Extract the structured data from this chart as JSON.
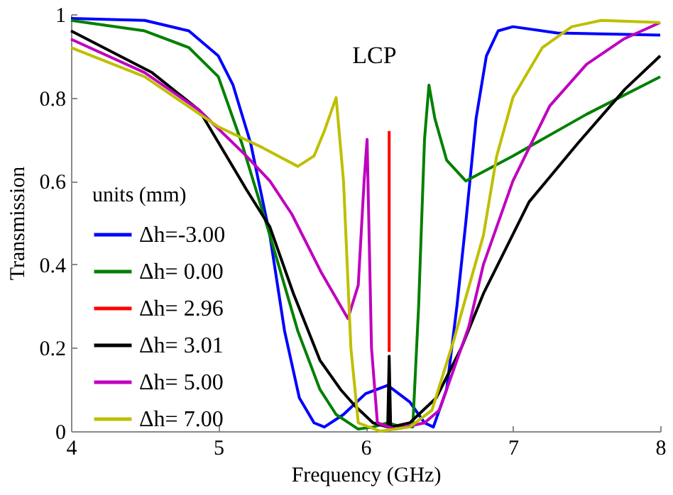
{
  "chart_data": {
    "type": "line",
    "xlabel": "Frequency (GHz)",
    "ylabel": "Transmission",
    "legend_title": "units (mm)",
    "annotations": [
      "LCP"
    ],
    "xlim": [
      4,
      8
    ],
    "xticks": [
      4,
      5,
      6,
      7,
      8
    ],
    "ylim": [
      0,
      1
    ],
    "yticks": [
      0,
      0.2,
      0.4,
      0.6,
      0.8,
      1
    ],
    "grid": false,
    "legend": "bottom left",
    "series": [
      {
        "name": "Δh=-3.00",
        "color": "#0000ff",
        "x": [
          4,
          4.5,
          4.8,
          5.0,
          5.1,
          5.22,
          5.35,
          5.45,
          5.55,
          5.65,
          5.72,
          5.85,
          6.0,
          6.15,
          6.3,
          6.4,
          6.46,
          6.55,
          6.62,
          6.68,
          6.75,
          6.82,
          6.9,
          7.0,
          7.3,
          8
        ],
        "values": [
          0.99,
          0.985,
          0.96,
          0.9,
          0.83,
          0.69,
          0.47,
          0.24,
          0.08,
          0.02,
          0.01,
          0.04,
          0.09,
          0.11,
          0.07,
          0.02,
          0.01,
          0.1,
          0.3,
          0.5,
          0.75,
          0.9,
          0.96,
          0.97,
          0.955,
          0.95
        ]
      },
      {
        "name": "Δh= 0.00",
        "color": "#008000",
        "x": [
          4,
          4.5,
          4.8,
          5.0,
          5.16,
          5.35,
          5.54,
          5.69,
          5.8,
          5.95,
          6.05,
          6.15,
          6.25,
          6.32,
          6.36,
          6.4,
          6.43,
          6.47,
          6.55,
          6.68,
          7.0,
          7.5,
          8
        ],
        "values": [
          0.985,
          0.96,
          0.92,
          0.85,
          0.69,
          0.47,
          0.24,
          0.1,
          0.04,
          0.005,
          0.01,
          0.02,
          0.01,
          0.01,
          0.3,
          0.7,
          0.83,
          0.75,
          0.65,
          0.6,
          0.66,
          0.76,
          0.85
        ]
      },
      {
        "name": "Δh= 2.96",
        "color": "#ff0000",
        "x": [
          6.16,
          6.16
        ],
        "values": [
          0.19,
          0.72
        ]
      },
      {
        "name": "Δh= 3.01",
        "color": "#000000",
        "x": [
          4,
          4.55,
          4.87,
          5.19,
          5.35,
          5.51,
          5.69,
          5.83,
          5.93,
          6.05,
          6.15,
          6.16,
          6.17,
          6.3,
          6.48,
          6.65,
          6.8,
          7.11,
          7.44,
          7.76,
          8
        ],
        "values": [
          0.96,
          0.86,
          0.77,
          0.58,
          0.49,
          0.33,
          0.17,
          0.1,
          0.06,
          0.02,
          0.01,
          0.18,
          0.01,
          0.02,
          0.08,
          0.2,
          0.33,
          0.55,
          0.69,
          0.82,
          0.9
        ]
      },
      {
        "name": "Δh= 5.00",
        "color": "#bf00bf",
        "x": [
          4,
          4.5,
          4.87,
          5.19,
          5.35,
          5.5,
          5.7,
          5.88,
          5.95,
          5.99,
          6.01,
          6.04,
          6.08,
          6.2,
          6.4,
          6.5,
          6.7,
          6.8,
          7.0,
          7.25,
          7.5,
          7.75,
          8
        ],
        "values": [
          0.94,
          0.86,
          0.77,
          0.66,
          0.6,
          0.52,
          0.38,
          0.27,
          0.35,
          0.6,
          0.7,
          0.2,
          0.02,
          0.005,
          0.02,
          0.05,
          0.25,
          0.4,
          0.6,
          0.78,
          0.88,
          0.94,
          0.98
        ]
      },
      {
        "name": "Δh= 7.00",
        "color": "#bfbf00",
        "x": [
          4,
          4.5,
          5.0,
          5.3,
          5.54,
          5.65,
          5.72,
          5.8,
          5.85,
          5.9,
          5.95,
          6.1,
          6.3,
          6.45,
          6.6,
          6.8,
          6.89,
          7.0,
          7.2,
          7.4,
          7.6,
          8
        ],
        "values": [
          0.92,
          0.85,
          0.73,
          0.68,
          0.635,
          0.66,
          0.72,
          0.8,
          0.6,
          0.2,
          0.02,
          0.0,
          0.01,
          0.05,
          0.22,
          0.47,
          0.66,
          0.8,
          0.92,
          0.97,
          0.985,
          0.98
        ]
      }
    ]
  }
}
